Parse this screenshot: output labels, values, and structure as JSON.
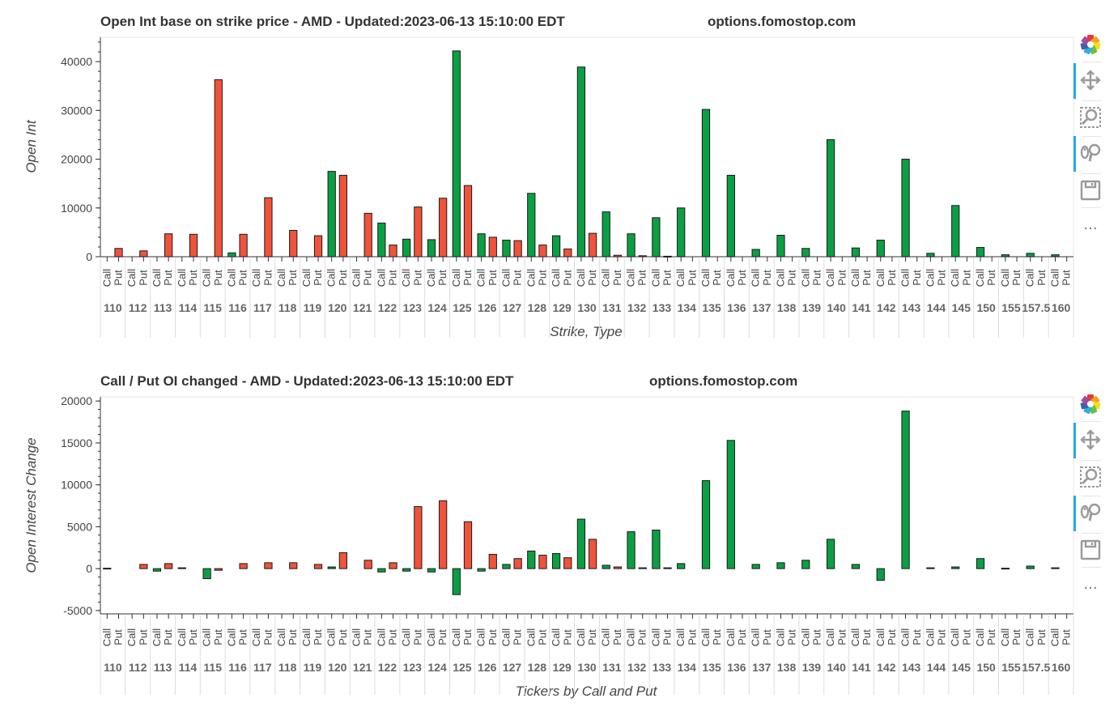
{
  "colors": {
    "call": "#0b9f44",
    "put": "#f0533a",
    "edge": "#1a1a1a"
  },
  "strikes": [
    "110",
    "112",
    "113",
    "114",
    "115",
    "116",
    "117",
    "118",
    "119",
    "120",
    "121",
    "122",
    "123",
    "124",
    "125",
    "126",
    "127",
    "128",
    "129",
    "130",
    "131",
    "132",
    "133",
    "134",
    "135",
    "136",
    "137",
    "138",
    "139",
    "140",
    "141",
    "142",
    "143",
    "144",
    "145",
    "150",
    "155",
    "157.5",
    "160"
  ],
  "type_labels": [
    "Call",
    "Put"
  ],
  "toolbar": [
    "bokeh-logo-icon",
    "pan-icon",
    "box-zoom-icon",
    "wheel-zoom-icon",
    "save-icon",
    "more-icon"
  ],
  "toolbar_more": "...",
  "chart_data": [
    {
      "type": "bar",
      "title": "Open Int base on strike price - AMD - Updated:2023-06-13 15:10:00 EDT",
      "site": "options.fomostop.com",
      "ylabel": "Open Int",
      "xlabel": "Strike, Type",
      "ylim": [
        0,
        45000
      ],
      "yticks": [
        0,
        10000,
        20000,
        30000,
        40000
      ],
      "ytick_labels": [
        "0",
        "10000",
        "20000",
        "30000",
        "40000"
      ],
      "series": [
        {
          "name": "Call",
          "values": [
            0,
            0,
            0,
            0,
            0,
            800,
            0,
            0,
            0,
            17500,
            0,
            6900,
            3600,
            3500,
            42200,
            4700,
            3400,
            13000,
            4300,
            38900,
            9200,
            4700,
            8000,
            10000,
            30200,
            16700,
            1500,
            4400,
            1700,
            24000,
            1800,
            3400,
            20000,
            700,
            10500,
            1900,
            400,
            700,
            400
          ]
        },
        {
          "name": "Put",
          "values": [
            1700,
            1200,
            4700,
            4600,
            36300,
            4600,
            12100,
            5400,
            4300,
            16700,
            8900,
            2400,
            10200,
            12000,
            14600,
            4000,
            3300,
            2400,
            1600,
            4800,
            300,
            200,
            100,
            0,
            0,
            0,
            0,
            0,
            0,
            0,
            0,
            0,
            0,
            0,
            0,
            0,
            0,
            0,
            0
          ]
        }
      ]
    },
    {
      "type": "bar",
      "title": "Call / Put OI changed - AMD - Updated:2023-06-13 15:10:00 EDT",
      "site": "options.fomostop.com",
      "ylabel": "Open Interest Change",
      "xlabel": "Tickers by Call and Put",
      "ylim": [
        -5400,
        20500
      ],
      "yticks": [
        -5000,
        0,
        5000,
        10000,
        15000,
        20000
      ],
      "ytick_labels": [
        "-5000",
        "0",
        "5000",
        "10000",
        "15000",
        "20000"
      ],
      "series": [
        {
          "name": "Call",
          "values": [
            50,
            0,
            -300,
            100,
            -1200,
            0,
            0,
            0,
            0,
            200,
            0,
            -400,
            -300,
            -400,
            -3100,
            -300,
            500,
            2100,
            1800,
            5900,
            400,
            4400,
            4600,
            600,
            10500,
            15300,
            500,
            700,
            1000,
            3500,
            500,
            -1400,
            18800,
            100,
            200,
            1200,
            50,
            300,
            100
          ]
        },
        {
          "name": "Put",
          "values": [
            0,
            500,
            600,
            0,
            -200,
            600,
            700,
            700,
            500,
            1900,
            1000,
            700,
            7400,
            8100,
            5600,
            1700,
            1200,
            1600,
            1300,
            3500,
            200,
            100,
            100,
            0,
            0,
            0,
            0,
            0,
            0,
            0,
            0,
            0,
            0,
            0,
            0,
            0,
            0,
            0,
            0
          ]
        }
      ]
    }
  ]
}
